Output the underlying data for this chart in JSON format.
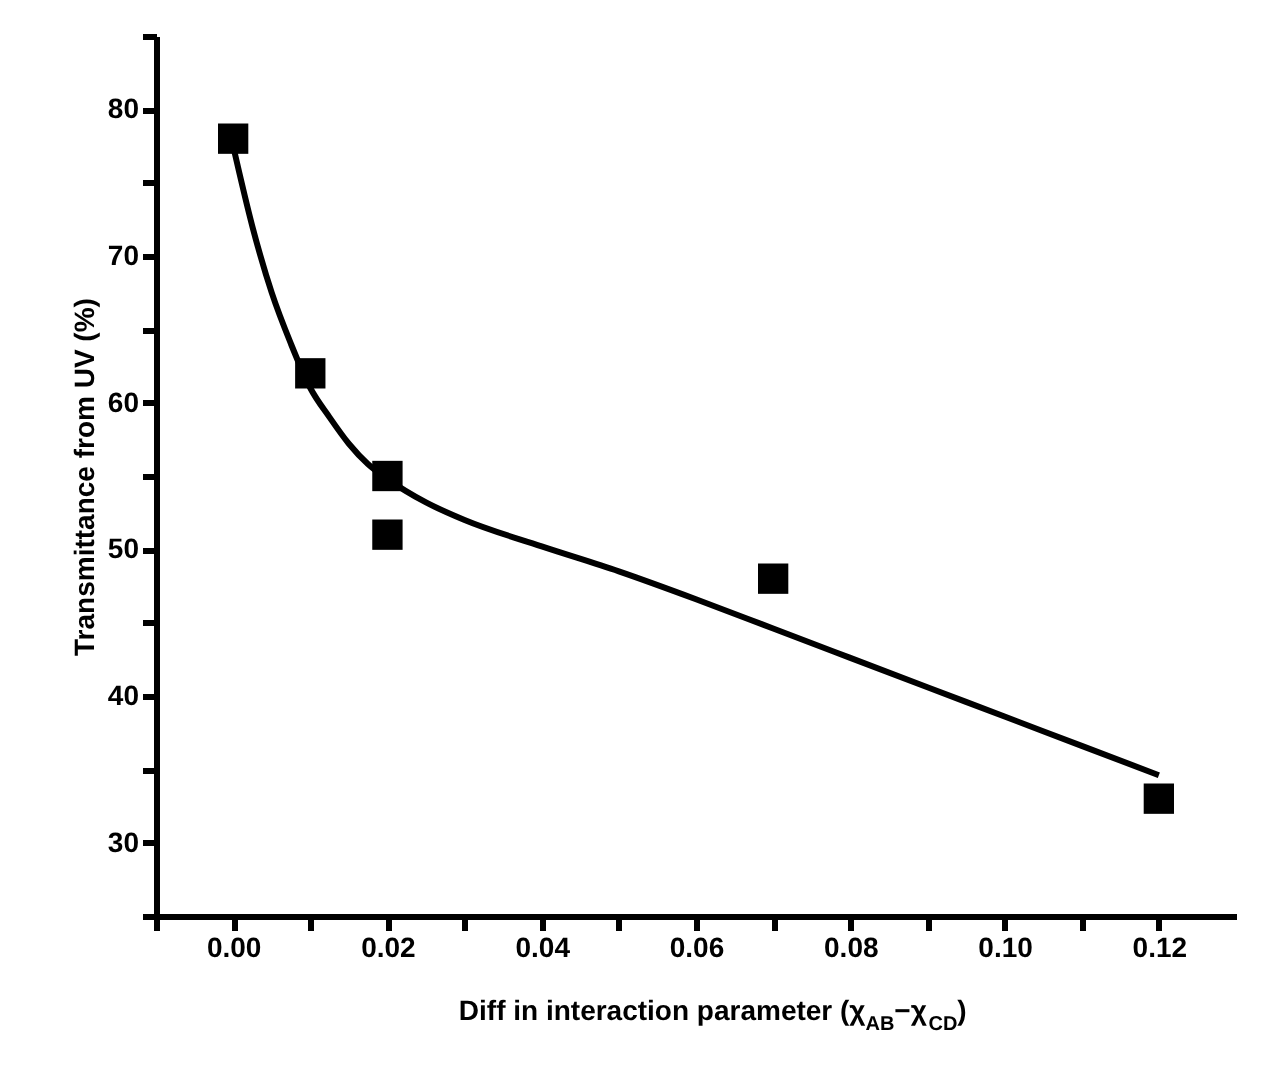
{
  "chart_data": {
    "type": "scatter",
    "xlabel": "Diff in interaction parameter (χ$_{AB}$−χ$_{CD}$)",
    "ylabel": "Transmittance from UV (%)",
    "series": [
      {
        "color": "#000000",
        "marker": "square",
        "x": [
          0,
          0.01,
          0.02,
          0.02,
          0.07,
          0.12
        ],
        "values": [
          78,
          62,
          55,
          51,
          48,
          33
        ]
      },
      {
        "type": "line",
        "color": "#000000",
        "marker": "none",
        "line_style": "solid",
        "x": [
          0,
          0.0025,
          0.005,
          0.0075,
          0.01,
          0.0125,
          0.015,
          0.0175,
          0.02,
          0.025,
          0.03,
          0.04,
          0.05,
          0.06,
          0.07,
          0.08,
          0.09,
          0.1,
          0.11,
          0.12
        ],
        "values": [
          77.5,
          72,
          67.5,
          64,
          61,
          59,
          57.2,
          55.8,
          54.8,
          53.2,
          52,
          50.2,
          48.5,
          46.6,
          44.6,
          42.6,
          40.6,
          38.6,
          36.6,
          34.6
        ]
      }
    ],
    "xlim": [
      -0.01,
      0.13
    ],
    "xticks": [
      {
        "value": -0.01,
        "label": null
      },
      {
        "value": 0,
        "label": "0.00"
      },
      {
        "value": 0.01,
        "label": null
      },
      0.02,
      {
        "value": 0.03,
        "label": null
      },
      0.04,
      {
        "value": 0.05,
        "label": null
      },
      0.06,
      {
        "value": 0.07,
        "label": null
      },
      0.08,
      {
        "value": 0.09,
        "label": null
      },
      {
        "value": 0.1,
        "label": "0.10"
      },
      {
        "value": 0.11,
        "label": null
      },
      0.12
    ],
    "ylim": [
      25,
      85
    ],
    "yticks": [
      {
        "value": 25,
        "label": null
      },
      30,
      {
        "value": 35,
        "label": null
      },
      40,
      {
        "value": 45,
        "label": null
      },
      50,
      {
        "value": 55,
        "label": null
      },
      60,
      {
        "value": 65,
        "label": null
      },
      70,
      {
        "value": 75,
        "label": null
      },
      80,
      {
        "value": 85,
        "label": null
      }
    ],
    "grid": false
  }
}
